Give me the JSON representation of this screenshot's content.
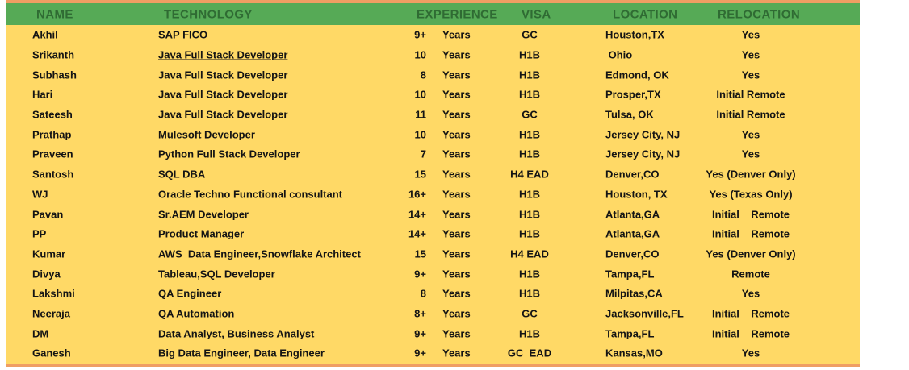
{
  "colors": {
    "header_bg": "#56AA56",
    "header_text": "#2F6B33",
    "row_bg": "#FFD966",
    "edge_strip": "#EF9E63",
    "cell_text": "#141414",
    "link_red": "#FF0000"
  },
  "table": {
    "columns": [
      "NAME",
      "TECHNOLOGY",
      "EXPERIENCE",
      "VISA",
      "LOCATION",
      "RELOCATION"
    ],
    "exp_unit": "Years",
    "rows": [
      {
        "name": "Akhil",
        "technology": "SAP FICO",
        "exp": "9+",
        "visa": "GC",
        "location": "Houston,TX",
        "relocation": "Yes"
      },
      {
        "name": "Srikanth",
        "technology": "Java Full Stack Developer",
        "exp": "10",
        "visa": "H1B",
        "location": " Ohio",
        "relocation": "Yes",
        "link": true
      },
      {
        "name": "Subhash",
        "technology": "Java Full Stack Developer",
        "exp": "8",
        "visa": "H1B",
        "location": "Edmond, OK",
        "relocation": "Yes"
      },
      {
        "name": "Hari",
        "technology": "Java Full Stack Developer",
        "exp": "10",
        "visa": "H1B",
        "location": "Prosper,TX",
        "relocation": "Initial Remote"
      },
      {
        "name": "Sateesh",
        "technology": "Java Full Stack Developer",
        "exp": "11",
        "visa": "GC",
        "location": "Tulsa, OK",
        "relocation": "Initial Remote"
      },
      {
        "name": "Prathap",
        "technology": "Mulesoft Developer",
        "exp": "10",
        "visa": "H1B",
        "location": "Jersey City, NJ",
        "relocation": "Yes"
      },
      {
        "name": "Praveen",
        "technology": "Python Full Stack Developer",
        "exp": "7",
        "visa": "H1B",
        "location": "Jersey City, NJ",
        "relocation": "Yes"
      },
      {
        "name": "Santosh",
        "technology": "SQL DBA",
        "exp": "15",
        "visa": "H4 EAD",
        "location": "Denver,CO",
        "relocation": "Yes (Denver Only)"
      },
      {
        "name": "WJ",
        "technology": "Oracle Techno Functional consultant",
        "exp": "16+",
        "visa": "H1B",
        "location": "Houston, TX",
        "relocation": "Yes (Texas Only)"
      },
      {
        "name": "Pavan",
        "technology": "Sr.AEM Developer",
        "exp": "14+",
        "visa": "H1B",
        "location": "Atlanta,GA",
        "relocation": "Initial    Remote"
      },
      {
        "name": "PP",
        "technology": "Product Manager",
        "exp": "14+",
        "visa": "H1B",
        "location": "Atlanta,GA",
        "relocation": "Initial    Remote"
      },
      {
        "name": "Kumar",
        "technology": "AWS  Data Engineer,Snowflake Architect",
        "exp": "15",
        "visa": "H4 EAD",
        "location": "Denver,CO",
        "relocation": "Yes (Denver Only)"
      },
      {
        "name": "Divya",
        "technology": "Tableau,SQL Developer",
        "exp": "9+",
        "visa": "H1B",
        "location": "Tampa,FL",
        "relocation": "Remote"
      },
      {
        "name": "Lakshmi",
        "technology": "QA Engineer",
        "exp": "8",
        "visa": "H1B",
        "location": "Milpitas,CA",
        "relocation": "Yes"
      },
      {
        "name": "Neeraja",
        "technology": "QA Automation",
        "exp": "8+",
        "visa": "GC",
        "location": "Jacksonville,FL",
        "relocation": "Initial    Remote"
      },
      {
        "name": "DM",
        "technology": "Data Analyst, Business Analyst",
        "exp": "9+",
        "visa": "H1B",
        "location": "Tampa,FL",
        "relocation": "Initial    Remote"
      },
      {
        "name": "Ganesh",
        "technology": "Big Data Engineer, Data Engineer",
        "exp": "9+",
        "visa": "GC  EAD",
        "location": "Kansas,MO",
        "relocation": "Yes"
      }
    ]
  }
}
